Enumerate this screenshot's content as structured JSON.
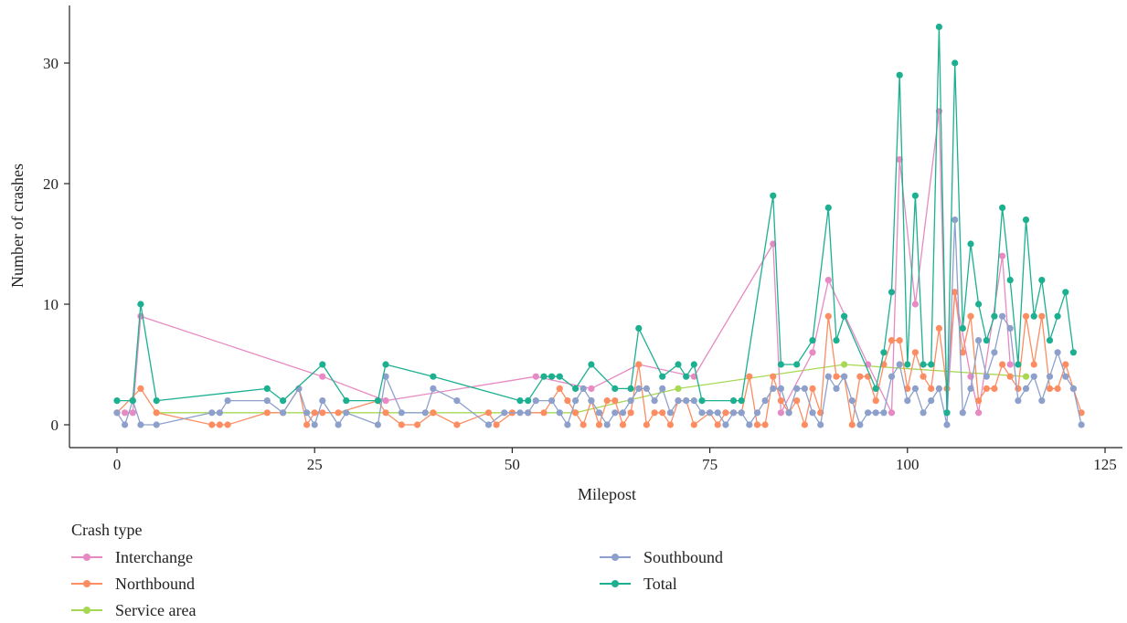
{
  "chart_data": {
    "type": "line",
    "title": "",
    "xlabel": "Milepost",
    "ylabel": "Number of crashes",
    "xlim": [
      -5,
      125
    ],
    "ylim": [
      -1.5,
      35
    ],
    "xticks": [
      0,
      25,
      50,
      75,
      100,
      125
    ],
    "yticks": [
      0,
      10,
      20,
      30
    ],
    "grid": false,
    "legend_title": "Crash type",
    "legend_position": "bottom-left",
    "series": [
      {
        "name": "Interchange",
        "color": "#e78ac3",
        "x": [
          1,
          2,
          3,
          26,
          34,
          53,
          60,
          66,
          73,
          83,
          84,
          88,
          90,
          95,
          98,
          99,
          101,
          104,
          105,
          106,
          108,
          109,
          112,
          113
        ],
        "y": [
          1,
          1,
          9,
          4,
          2,
          4,
          3,
          5,
          4,
          15,
          1,
          6,
          12,
          5,
          1,
          22,
          10,
          26,
          1,
          11,
          4,
          1,
          14,
          5
        ]
      },
      {
        "name": "Northbound",
        "color": "#fc8d62",
        "x": [
          0,
          3,
          5,
          12,
          13,
          14,
          19,
          21,
          23,
          24,
          25,
          26,
          28,
          33,
          34,
          36,
          38,
          40,
          43,
          47,
          48,
          50,
          52,
          54,
          56,
          57,
          58,
          59,
          60,
          61,
          62,
          63,
          64,
          65,
          66,
          67,
          68,
          69,
          70,
          71,
          72,
          73,
          75,
          76,
          77,
          78,
          79,
          80,
          81,
          82,
          83,
          84,
          85,
          86,
          87,
          88,
          89,
          90,
          91,
          92,
          93,
          94,
          95,
          96,
          97,
          98,
          99,
          100,
          101,
          102,
          103,
          104,
          105,
          106,
          107,
          108,
          109,
          110,
          111,
          112,
          113,
          114,
          115,
          116,
          117,
          118,
          119,
          120,
          121,
          122
        ],
        "y": [
          1,
          3,
          1,
          0,
          0,
          0,
          1,
          1,
          3,
          0,
          1,
          1,
          1,
          2,
          1,
          0,
          0,
          1,
          0,
          1,
          0,
          1,
          1,
          1,
          3,
          2,
          1,
          0,
          2,
          0,
          2,
          2,
          0,
          1,
          5,
          0,
          1,
          1,
          0,
          2,
          2,
          0,
          1,
          0,
          1,
          1,
          1,
          4,
          0,
          0,
          4,
          2,
          1,
          2,
          0,
          3,
          1,
          9,
          4,
          4,
          0,
          4,
          4,
          2,
          5,
          7,
          7,
          3,
          6,
          4,
          3,
          8,
          3,
          11,
          6,
          9,
          2,
          3,
          3,
          5,
          4,
          3,
          9,
          5,
          9,
          3,
          3,
          5,
          3,
          1
        ]
      },
      {
        "name": "Service area",
        "color": "#66c2a5",
        "altcolor": "#a6d854",
        "x": [
          5,
          40,
          58,
          71,
          92,
          115
        ],
        "y": [
          1,
          1,
          1,
          3,
          5,
          4
        ]
      },
      {
        "name": "Southbound",
        "color": "#8da0cb",
        "x": [
          0,
          1,
          2,
          3,
          5,
          12,
          13,
          14,
          19,
          21,
          23,
          24,
          25,
          26,
          28,
          29,
          33,
          34,
          36,
          39,
          40,
          43,
          47,
          49,
          51,
          52,
          53,
          55,
          56,
          57,
          58,
          59,
          60,
          61,
          62,
          63,
          64,
          65,
          66,
          67,
          68,
          69,
          70,
          71,
          72,
          73,
          74,
          75,
          76,
          77,
          78,
          79,
          80,
          81,
          82,
          83,
          84,
          85,
          86,
          87,
          88,
          89,
          90,
          91,
          92,
          93,
          94,
          95,
          96,
          97,
          98,
          99,
          100,
          101,
          102,
          103,
          104,
          105,
          106,
          107,
          108,
          109,
          110,
          111,
          112,
          113,
          114,
          115,
          116,
          117,
          118,
          119,
          120,
          121,
          122
        ],
        "y": [
          1,
          0,
          2,
          0,
          0,
          1,
          1,
          2,
          2,
          1,
          3,
          1,
          0,
          2,
          0,
          1,
          0,
          4,
          1,
          1,
          3,
          2,
          0,
          1,
          1,
          1,
          2,
          2,
          1,
          0,
          2,
          3,
          2,
          1,
          0,
          1,
          1,
          2,
          3,
          3,
          2,
          3,
          1,
          2,
          2,
          2,
          1,
          1,
          1,
          0,
          1,
          1,
          0,
          1,
          2,
          3,
          3,
          1,
          3,
          3,
          1,
          0,
          4,
          3,
          4,
          2,
          0,
          1,
          1,
          1,
          4,
          5,
          2,
          3,
          1,
          2,
          3,
          0,
          17,
          1,
          3,
          7,
          4,
          6,
          9,
          8,
          2,
          3,
          4,
          2,
          4,
          6,
          4,
          3,
          0
        ]
      },
      {
        "name": "Total",
        "color": "#1cb090",
        "x": [
          0,
          2,
          3,
          5,
          19,
          21,
          26,
          29,
          33,
          34,
          40,
          51,
          52,
          54,
          55,
          56,
          58,
          60,
          63,
          65,
          66,
          69,
          71,
          72,
          73,
          74,
          78,
          79,
          83,
          84,
          86,
          88,
          90,
          91,
          92,
          96,
          97,
          98,
          99,
          100,
          101,
          102,
          103,
          104,
          105,
          106,
          107,
          108,
          109,
          110,
          111,
          112,
          113,
          114,
          115,
          116,
          117,
          118,
          119,
          120,
          121
        ],
        "y": [
          2,
          2,
          10,
          2,
          3,
          2,
          5,
          2,
          2,
          5,
          4,
          2,
          2,
          4,
          4,
          4,
          3,
          5,
          3,
          3,
          8,
          4,
          5,
          4,
          5,
          2,
          2,
          2,
          19,
          5,
          5,
          7,
          18,
          7,
          9,
          3,
          6,
          11,
          29,
          5,
          19,
          5,
          5,
          33,
          1,
          30,
          8,
          15,
          10,
          7,
          9,
          18,
          12,
          5,
          17,
          9,
          12,
          7,
          9,
          11,
          6
        ]
      }
    ]
  }
}
